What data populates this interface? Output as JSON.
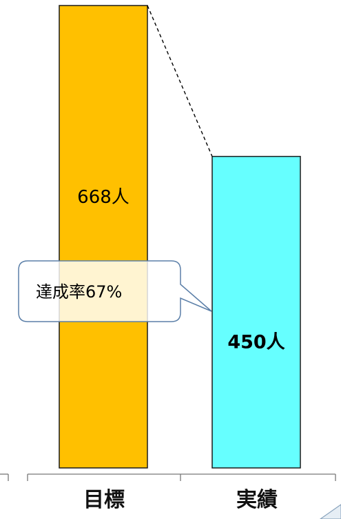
{
  "chart_data": {
    "type": "bar",
    "categories": [
      "目標",
      "実績"
    ],
    "values": [
      668,
      450
    ],
    "data_labels": [
      "668人",
      "450人"
    ],
    "colors": [
      "#FFC000",
      "#66FFFF"
    ],
    "callout": "達成率67%",
    "ylim": [
      0,
      668
    ],
    "grid": false,
    "legend": "none"
  }
}
